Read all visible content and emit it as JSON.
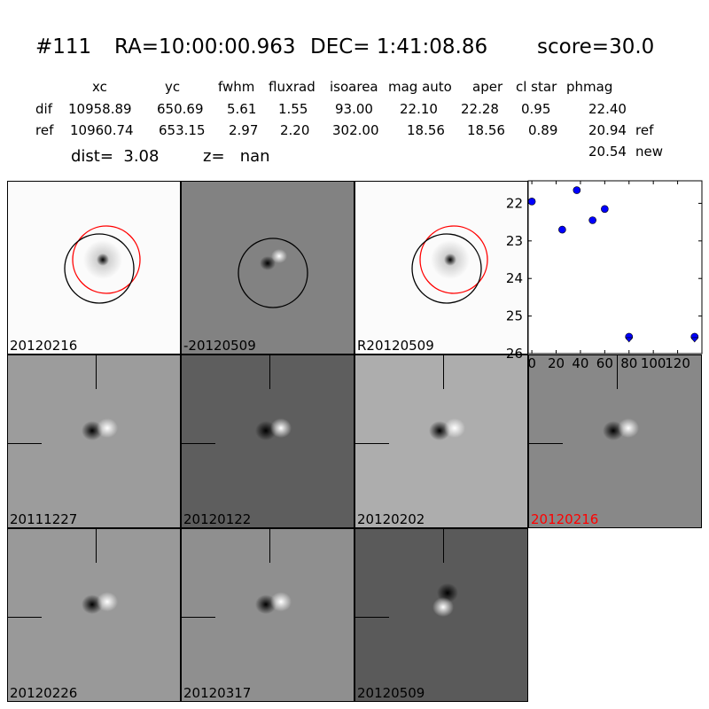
{
  "header": {
    "title_id": "#111",
    "title_ra": "RA=10:00:00.963",
    "title_dec": "DEC= 1:41:08.86",
    "title_score": "score=30.0"
  },
  "table": {
    "columns": [
      "xc",
      "yc",
      "fwhm",
      "fluxrad",
      "isoarea",
      "mag auto",
      "aper",
      "cl star",
      "phmag"
    ],
    "rows": [
      {
        "name": "dif",
        "values": [
          "10958.89",
          "650.69",
          "5.61",
          "1.55",
          "93.00",
          "22.10",
          "22.28",
          "0.95",
          "22.40"
        ],
        "suffix": ""
      },
      {
        "name": "ref",
        "values": [
          "10960.74",
          "653.15",
          "2.97",
          "2.20",
          "302.00",
          "18.56",
          "18.56",
          "0.89",
          "20.94"
        ],
        "suffix": "ref"
      }
    ],
    "extra_phmag": "20.54",
    "extra_suffix": "new"
  },
  "summary": {
    "dist": "dist=  3.08",
    "z": "z=   nan"
  },
  "panels": [
    {
      "label": "20120216",
      "label_color": "#000000",
      "type": "ref",
      "bg": "#fbfbfb"
    },
    {
      "label": "-20120509",
      "label_color": "#000000",
      "type": "diff-circle",
      "bg": "#828282"
    },
    {
      "label": "R20120509",
      "label_color": "#000000",
      "type": "ref",
      "bg": "#fbfbfb"
    },
    {
      "label": "20111227",
      "label_color": "#000000",
      "type": "diff",
      "bg": "#9c9c9c"
    },
    {
      "label": "20120122",
      "label_color": "#000000",
      "type": "diff",
      "bg": "#5e5e5e"
    },
    {
      "label": "20120202",
      "label_color": "#000000",
      "type": "diff",
      "bg": "#adadad"
    },
    {
      "label": "20120216",
      "label_color": "#ff0000",
      "type": "diff",
      "bg": "#888888"
    },
    {
      "label": "20120226",
      "label_color": "#000000",
      "type": "diff",
      "bg": "#999999"
    },
    {
      "label": "20120317",
      "label_color": "#000000",
      "type": "diff",
      "bg": "#8f8f8f"
    },
    {
      "label": "20120509",
      "label_color": "#000000",
      "type": "diff",
      "bg": "#5a5a5a"
    }
  ],
  "chart_data": {
    "type": "scatter",
    "x": [
      0,
      25,
      37,
      50,
      60,
      80,
      134
    ],
    "y": [
      21.95,
      22.7,
      21.65,
      22.45,
      22.15,
      25.55,
      25.55
    ],
    "xlim": [
      -3,
      140
    ],
    "ylim": [
      26,
      21.4
    ],
    "xticks": [
      "0",
      "20",
      "40",
      "60",
      "80",
      "100",
      "120"
    ],
    "yticks": [
      "22",
      "23",
      "24",
      "25",
      "26"
    ],
    "color": "#0000ff"
  }
}
